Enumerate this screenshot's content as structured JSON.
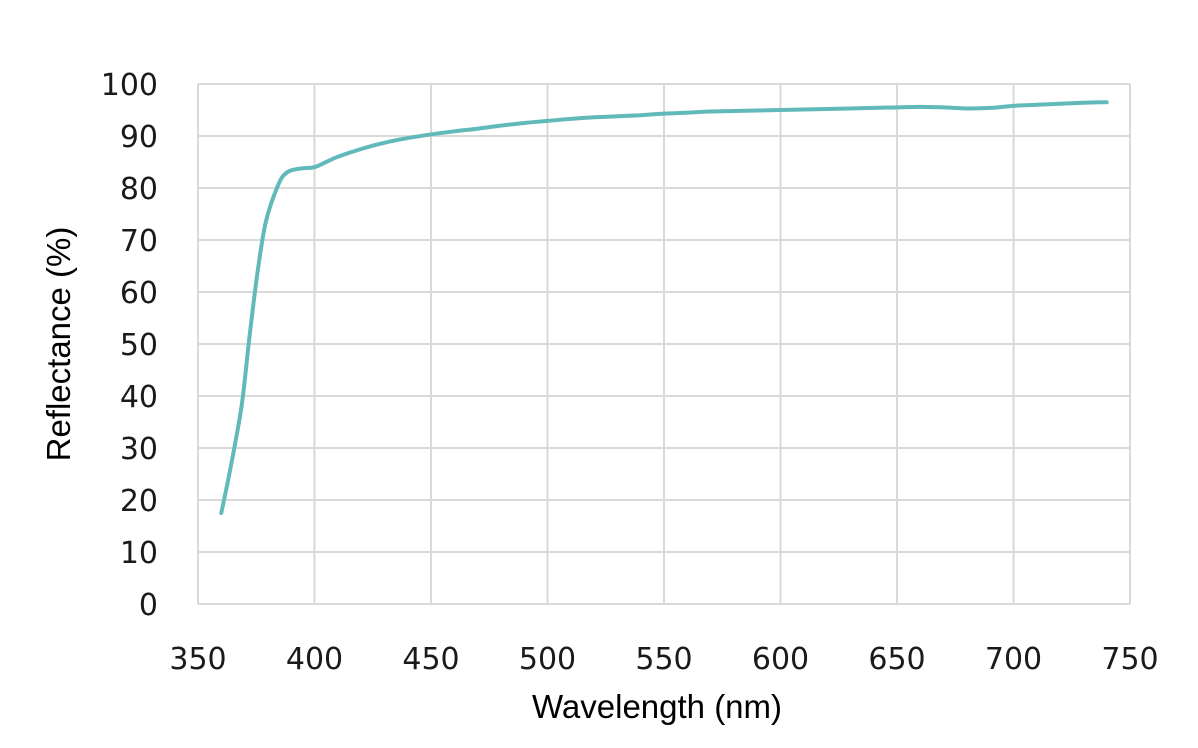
{
  "chart_data": {
    "type": "line",
    "title": "",
    "xlabel": "Wavelength (nm)",
    "ylabel": "Reflectance (%)",
    "xlim": [
      350,
      750
    ],
    "ylim": [
      0,
      100
    ],
    "x_ticks": [
      350,
      400,
      450,
      500,
      550,
      600,
      650,
      700,
      750
    ],
    "y_ticks": [
      0,
      10,
      20,
      30,
      40,
      50,
      60,
      70,
      80,
      90,
      100
    ],
    "grid": true,
    "legend": "none",
    "series": [
      {
        "color": "#62b9b9",
        "x": [
          360,
          363,
          366,
          369,
          372,
          375,
          378,
          380,
          383,
          386,
          389,
          392,
          395,
          400,
          405,
          410,
          420,
          430,
          440,
          450,
          460,
          470,
          480,
          490,
          500,
          510,
          520,
          530,
          540,
          550,
          560,
          570,
          580,
          590,
          600,
          610,
          620,
          630,
          640,
          650,
          660,
          670,
          680,
          690,
          700,
          710,
          720,
          730,
          740
        ],
        "y": [
          17.5,
          24,
          31,
          39,
          51,
          62,
          71,
          75,
          79,
          82,
          83.2,
          83.6,
          83.8,
          84,
          85,
          86,
          87.5,
          88.7,
          89.6,
          90.3,
          90.9,
          91.4,
          92,
          92.5,
          92.9,
          93.3,
          93.6,
          93.8,
          94,
          94.3,
          94.5,
          94.7,
          94.8,
          94.9,
          95,
          95.1,
          95.2,
          95.3,
          95.4,
          95.5,
          95.6,
          95.5,
          95.3,
          95.4,
          95.8,
          96,
          96.2,
          96.4,
          96.5
        ]
      }
    ]
  }
}
